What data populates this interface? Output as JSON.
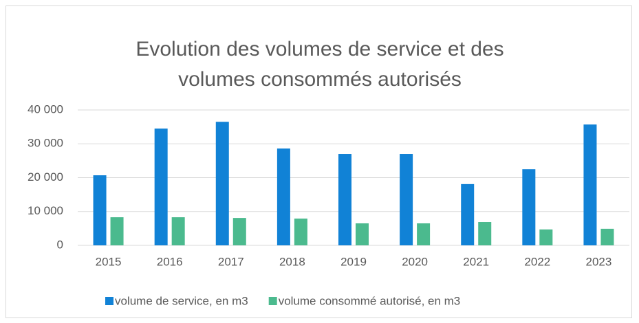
{
  "chart_data": {
    "type": "bar",
    "title": "Evolution des volumes de service et des volumes consommés autorisés",
    "categories": [
      "2015",
      "2016",
      "2017",
      "2018",
      "2019",
      "2020",
      "2021",
      "2022",
      "2023"
    ],
    "series": [
      {
        "name": "volume de service, en m3",
        "color": "#1182d6",
        "values": [
          20700,
          34500,
          36500,
          28600,
          27000,
          27000,
          18100,
          22500,
          35700
        ]
      },
      {
        "name": "volume consommé autorisé, en m3",
        "color": "#4bba8e",
        "values": [
          8300,
          8300,
          8100,
          7900,
          6500,
          6500,
          6900,
          4700,
          4900
        ]
      }
    ],
    "ylim": [
      0,
      40000
    ],
    "yticks": [
      0,
      {
        "value": 10000,
        "label": "10 000"
      },
      {
        "value": 20000,
        "label": "20 000"
      },
      {
        "value": 30000,
        "label": "30 000"
      },
      {
        "value": 40000,
        "label": "40 000"
      }
    ],
    "grid": true,
    "legend": "bottom"
  }
}
